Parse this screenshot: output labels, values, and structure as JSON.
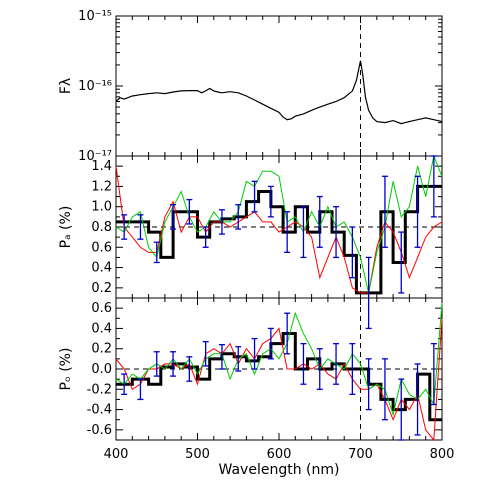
{
  "chart_data": [
    {
      "panel": "top",
      "type": "line",
      "ylabel": "Fλ",
      "y_scale": "log",
      "ylim": [
        1e-17,
        1e-15
      ],
      "xlim": [
        400,
        800
      ],
      "ytick_labels": [
        "10⁻¹⁷",
        "10⁻¹⁶",
        "10⁻¹⁵"
      ],
      "ytick_values": [
        1e-17,
        1e-16,
        1e-15
      ],
      "vline": 700,
      "series": [
        {
          "color": "#000000",
          "x": [
            400,
            405,
            410,
            420,
            430,
            440,
            450,
            460,
            470,
            480,
            490,
            500,
            505,
            510,
            515,
            520,
            525,
            530,
            540,
            550,
            560,
            570,
            580,
            590,
            600,
            605,
            610,
            615,
            620,
            630,
            640,
            650,
            660,
            670,
            680,
            690,
            695,
            700,
            703,
            706,
            710,
            715,
            720,
            730,
            740,
            750,
            760,
            770,
            780,
            790,
            800
          ],
          "y": [
            6e-17,
            6.8e-17,
            6.5e-17,
            7.2e-17,
            7.5e-17,
            7.8e-17,
            8e-17,
            7.8e-17,
            8.2e-17,
            8.5e-17,
            8.6e-17,
            8.6e-17,
            8e-17,
            8.5e-17,
            9.2e-17,
            8.5e-17,
            8.2e-17,
            8e-17,
            8.3e-17,
            8e-17,
            7.2e-17,
            6.3e-17,
            5.5e-17,
            4.8e-17,
            4.2e-17,
            3.6e-17,
            3.3e-17,
            3.4e-17,
            3.7e-17,
            4e-17,
            4.5e-17,
            5e-17,
            5.5e-17,
            6e-17,
            6.8e-17,
            8.5e-17,
            1.2e-16,
            2.3e-16,
            1.4e-16,
            7e-17,
            4.5e-17,
            3.5e-17,
            3.1e-17,
            3e-17,
            3.2e-17,
            2.9e-17,
            3.1e-17,
            3.3e-17,
            3.5e-17,
            3.3e-17,
            3.1e-17
          ]
        }
      ]
    },
    {
      "panel": "middle",
      "type": "line",
      "ylabel": "Pₐ (%)",
      "ylim": [
        0.1,
        1.5
      ],
      "xlim": [
        400,
        800
      ],
      "ytick_labels": [
        "0.2",
        "0.4",
        "0.6",
        "0.8",
        "1.0",
        "1.2",
        "1.4"
      ],
      "ytick_values": [
        0.2,
        0.4,
        0.6,
        0.8,
        1.0,
        1.2,
        1.4
      ],
      "hline": 0.8,
      "vline": 700,
      "series": [
        {
          "style": "step",
          "color": "#000000",
          "bins": [
            400,
            420,
            440,
            455,
            470,
            485,
            500,
            515,
            530,
            545,
            560,
            575,
            590,
            605,
            620,
            635,
            650,
            665,
            680,
            695,
            710,
            725,
            740,
            755,
            770,
            785,
            800
          ],
          "values": [
            0.85,
            0.85,
            0.75,
            0.5,
            0.95,
            0.95,
            0.7,
            0.85,
            0.88,
            0.9,
            1.05,
            1.15,
            1.0,
            0.75,
            1.0,
            0.75,
            0.95,
            0.75,
            0.52,
            0.15,
            0.15,
            0.95,
            0.45,
            0.95,
            1.2,
            1.2
          ]
        },
        {
          "color": "#ff0000",
          "x": [
            400,
            410,
            420,
            430,
            440,
            450,
            460,
            470,
            480,
            490,
            500,
            510,
            520,
            530,
            540,
            550,
            560,
            570,
            580,
            590,
            600,
            610,
            620,
            630,
            640,
            650,
            660,
            670,
            680,
            690,
            700,
            710,
            720,
            730,
            740,
            750,
            760,
            770,
            780,
            790,
            800
          ],
          "y": [
            1.4,
            0.8,
            0.7,
            0.6,
            0.55,
            0.55,
            0.9,
            1.05,
            0.75,
            0.9,
            0.9,
            0.75,
            0.85,
            0.85,
            0.8,
            0.85,
            0.9,
            0.95,
            0.85,
            0.85,
            0.75,
            0.8,
            0.85,
            0.8,
            0.7,
            0.3,
            0.5,
            0.7,
            0.5,
            0.2,
            0.15,
            0.15,
            0.6,
            0.85,
            0.75,
            0.55,
            0.3,
            0.5,
            0.7,
            0.8,
            0.85
          ]
        },
        {
          "color": "#00cc00",
          "x": [
            400,
            410,
            420,
            430,
            440,
            450,
            460,
            470,
            480,
            490,
            500,
            510,
            520,
            530,
            540,
            550,
            560,
            570,
            580,
            590,
            600,
            610,
            620,
            630,
            640,
            650,
            660,
            670,
            680,
            690,
            700,
            710,
            720,
            730,
            740,
            750,
            760,
            770,
            780,
            790,
            800
          ],
          "y": [
            0.8,
            0.75,
            0.9,
            0.95,
            0.6,
            0.5,
            0.85,
            1.0,
            1.15,
            0.9,
            0.75,
            0.8,
            0.95,
            0.85,
            0.85,
            0.95,
            1.25,
            1.2,
            1.35,
            1.35,
            1.3,
            0.85,
            0.9,
            0.75,
            0.95,
            0.8,
            1.0,
            0.8,
            0.85,
            0.7,
            0.5,
            0.15,
            0.55,
            0.8,
            1.25,
            0.9,
            1.0,
            1.4,
            1.1,
            1.55,
            1.3
          ]
        },
        {
          "style": "errorbar",
          "color": "#0000cc",
          "x": [
            410,
            430,
            450,
            470,
            490,
            510,
            530,
            550,
            570,
            590,
            610,
            630,
            650,
            670,
            690,
            710,
            730,
            750,
            770,
            790
          ],
          "y": [
            0.8,
            0.8,
            0.55,
            0.9,
            0.95,
            0.7,
            0.85,
            0.9,
            1.1,
            1.05,
            0.75,
            0.75,
            0.85,
            0.75,
            0.55,
            0.15,
            0.95,
            0.45,
            0.95,
            1.2
          ],
          "err": [
            0.12,
            0.12,
            0.1,
            0.12,
            0.12,
            0.1,
            0.12,
            0.12,
            0.15,
            0.15,
            0.2,
            0.25,
            0.25,
            0.25,
            0.25,
            0.35,
            0.35,
            0.3,
            0.35,
            0.3
          ]
        }
      ]
    },
    {
      "panel": "bottom",
      "type": "line",
      "ylabel": "Pₒ (%)",
      "xlabel": "Wavelength (nm)",
      "ylim": [
        -0.7,
        0.7
      ],
      "xlim": [
        400,
        800
      ],
      "ytick_labels": [
        "-0.6",
        "-0.4",
        "-0.2",
        "0.0",
        "0.2",
        "0.4",
        "0.6"
      ],
      "ytick_values": [
        -0.6,
        -0.4,
        -0.2,
        0.0,
        0.2,
        0.4,
        0.6
      ],
      "xtick_labels": [
        "400",
        "500",
        "600",
        "700",
        "800"
      ],
      "xtick_values": [
        400,
        500,
        600,
        700,
        800
      ],
      "hline": 0.0,
      "vline": 700,
      "series": [
        {
          "style": "step",
          "color": "#000000",
          "bins": [
            400,
            420,
            440,
            455,
            470,
            485,
            500,
            515,
            530,
            545,
            560,
            575,
            590,
            605,
            620,
            635,
            650,
            665,
            680,
            695,
            710,
            725,
            740,
            755,
            770,
            785,
            800
          ],
          "values": [
            -0.15,
            -0.1,
            -0.15,
            0.02,
            0.05,
            0.02,
            -0.1,
            0.1,
            0.15,
            0.12,
            0.08,
            0.12,
            0.25,
            0.35,
            0.0,
            0.1,
            0.0,
            0.05,
            0.0,
            0.0,
            -0.15,
            -0.3,
            -0.4,
            -0.3,
            -0.05,
            -0.5
          ]
        },
        {
          "color": "#ff0000",
          "x": [
            400,
            410,
            420,
            430,
            440,
            450,
            460,
            470,
            480,
            490,
            500,
            510,
            520,
            530,
            540,
            550,
            560,
            570,
            580,
            590,
            600,
            610,
            620,
            630,
            640,
            650,
            660,
            670,
            680,
            690,
            700,
            710,
            720,
            730,
            740,
            750,
            760,
            770,
            780,
            790,
            800
          ],
          "y": [
            0.1,
            0.0,
            -0.2,
            -0.15,
            0.0,
            0.0,
            0.05,
            0.05,
            0.0,
            0.05,
            -0.15,
            0.15,
            0.2,
            0.15,
            0.25,
            0.05,
            0.2,
            0.1,
            0.25,
            0.3,
            0.4,
            0.0,
            0.0,
            0.05,
            0.0,
            0.05,
            -0.05,
            -0.1,
            0.05,
            -0.1,
            -0.2,
            -0.2,
            -0.15,
            -0.3,
            -0.5,
            -0.3,
            -0.4,
            -0.25,
            -0.6,
            -0.7,
            0.5
          ]
        },
        {
          "color": "#00cc00",
          "x": [
            400,
            410,
            420,
            430,
            440,
            450,
            460,
            470,
            480,
            490,
            500,
            510,
            520,
            530,
            540,
            550,
            560,
            570,
            580,
            590,
            600,
            610,
            620,
            630,
            640,
            650,
            660,
            670,
            680,
            690,
            700,
            710,
            720,
            730,
            740,
            750,
            760,
            770,
            780,
            790,
            800
          ],
          "y": [
            -0.1,
            -0.15,
            -0.05,
            -0.1,
            0.0,
            0.05,
            0.0,
            0.1,
            0.0,
            0.1,
            -0.05,
            0.1,
            0.15,
            0.15,
            -0.1,
            0.1,
            0.15,
            -0.05,
            0.15,
            0.2,
            0.1,
            0.25,
            0.55,
            0.35,
            0.2,
            0.0,
            0.1,
            0.05,
            0.0,
            0.15,
            0.05,
            -0.2,
            -0.15,
            -0.2,
            -0.45,
            -0.1,
            -0.25,
            -0.3,
            -0.2,
            -0.35,
            0.65
          ]
        },
        {
          "style": "errorbar",
          "color": "#0000cc",
          "x": [
            410,
            430,
            450,
            470,
            490,
            510,
            530,
            550,
            570,
            590,
            610,
            630,
            650,
            670,
            690,
            710,
            730,
            750,
            770,
            790
          ],
          "y": [
            -0.15,
            -0.2,
            0.05,
            0.05,
            0.0,
            0.15,
            0.12,
            0.1,
            0.15,
            0.25,
            0.35,
            0.05,
            0.0,
            0.05,
            0.0,
            -0.15,
            -0.2,
            -0.4,
            -0.3,
            -0.05
          ],
          "err": [
            0.1,
            0.1,
            0.12,
            0.12,
            0.12,
            0.12,
            0.12,
            0.12,
            0.15,
            0.15,
            0.2,
            0.2,
            0.2,
            0.2,
            0.25,
            0.25,
            0.3,
            0.3,
            0.35,
            0.3
          ]
        }
      ]
    }
  ]
}
